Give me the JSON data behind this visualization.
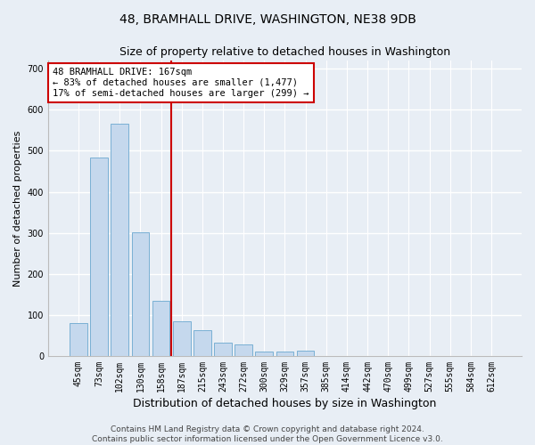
{
  "title1": "48, BRAMHALL DRIVE, WASHINGTON, NE38 9DB",
  "title2": "Size of property relative to detached houses in Washington",
  "xlabel": "Distribution of detached houses by size in Washington",
  "ylabel": "Number of detached properties",
  "categories": [
    "45sqm",
    "73sqm",
    "102sqm",
    "130sqm",
    "158sqm",
    "187sqm",
    "215sqm",
    "243sqm",
    "272sqm",
    "300sqm",
    "329sqm",
    "357sqm",
    "385sqm",
    "414sqm",
    "442sqm",
    "470sqm",
    "499sqm",
    "527sqm",
    "555sqm",
    "584sqm",
    "612sqm"
  ],
  "values": [
    80,
    483,
    567,
    302,
    134,
    85,
    62,
    33,
    28,
    11,
    10,
    12,
    0,
    0,
    0,
    0,
    0,
    0,
    0,
    0,
    0
  ],
  "bar_color": "#c5d8ed",
  "bar_edge_color": "#7ab0d4",
  "bar_edge_width": 0.7,
  "vline_x_index": 4.5,
  "vline_color": "#cc0000",
  "annotation_text": "48 BRAMHALL DRIVE: 167sqm\n← 83% of detached houses are smaller (1,477)\n17% of semi-detached houses are larger (299) →",
  "annotation_box_color": "#ffffff",
  "annotation_box_edge_color": "#cc0000",
  "ylim": [
    0,
    720
  ],
  "yticks": [
    0,
    100,
    200,
    300,
    400,
    500,
    600,
    700
  ],
  "plot_bg_color": "#e8eef5",
  "fig_bg_color": "#e8eef5",
  "grid_color": "#ffffff",
  "footer1": "Contains HM Land Registry data © Crown copyright and database right 2024.",
  "footer2": "Contains public sector information licensed under the Open Government Licence v3.0.",
  "title1_fontsize": 10,
  "title2_fontsize": 9,
  "xlabel_fontsize": 9,
  "ylabel_fontsize": 8,
  "tick_fontsize": 7,
  "annotation_fontsize": 7.5,
  "footer_fontsize": 6.5
}
